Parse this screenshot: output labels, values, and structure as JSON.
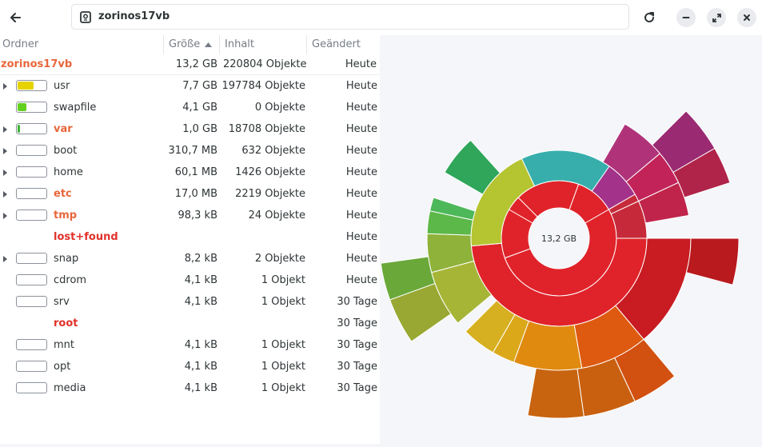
{
  "header": {
    "title": "zorinos17vb",
    "icons": {
      "back": "arrow-left-icon",
      "disk": "disk-icon",
      "reload": "reload-icon",
      "minimize": "minimize-icon",
      "maximize": "maximize-icon",
      "close": "close-icon"
    }
  },
  "columns": {
    "name": "Ordner",
    "size": "Größe",
    "contents": "Inhalt",
    "modified": "Geändert"
  },
  "root": {
    "name": "zorinos17vb",
    "size": "13,2 GB",
    "contents": "220804 Objekte",
    "modified": "Heute"
  },
  "rows": [
    {
      "name": "usr",
      "size": "7,7 GB",
      "contents": "197784 Objekte",
      "modified": "Heute",
      "expandable": true,
      "bar": true,
      "fill_fraction": 0.58,
      "fill_color": "#e5d200",
      "name_color": "#2e3436"
    },
    {
      "name": "swapfile",
      "size": "4,1 GB",
      "contents": "0 Objekte",
      "modified": "Heute",
      "expandable": false,
      "bar": true,
      "fill_fraction": 0.31,
      "fill_color": "#62d01e",
      "name_color": "#2e3436"
    },
    {
      "name": "var",
      "size": "1,0 GB",
      "contents": "18708 Objekte",
      "modified": "Heute",
      "expandable": true,
      "bar": true,
      "fill_fraction": 0.08,
      "fill_color": "#3fb53a",
      "name_color": "#e8663a"
    },
    {
      "name": "boot",
      "size": "310,7 MB",
      "contents": "632 Objekte",
      "modified": "Heute",
      "expandable": true,
      "bar": true,
      "fill_fraction": 0,
      "fill_color": "#cccccc",
      "name_color": "#2e3436"
    },
    {
      "name": "home",
      "size": "60,1 MB",
      "contents": "1426 Objekte",
      "modified": "Heute",
      "expandable": true,
      "bar": true,
      "fill_fraction": 0,
      "fill_color": "#cccccc",
      "name_color": "#2e3436"
    },
    {
      "name": "etc",
      "size": "17,0 MB",
      "contents": "2219 Objekte",
      "modified": "Heute",
      "expandable": true,
      "bar": true,
      "fill_fraction": 0,
      "fill_color": "#cccccc",
      "name_color": "#e8663a"
    },
    {
      "name": "tmp",
      "size": "98,3 kB",
      "contents": "24 Objekte",
      "modified": "Heute",
      "expandable": true,
      "bar": true,
      "fill_fraction": 0,
      "fill_color": "#cccccc",
      "name_color": "#e8663a"
    },
    {
      "name": "lost+found",
      "size": "",
      "contents": "",
      "modified": "Heute",
      "expandable": false,
      "bar": false,
      "fill_fraction": 0,
      "fill_color": "#cccccc",
      "name_color": "#e0312a"
    },
    {
      "name": "snap",
      "size": "8,2 kB",
      "contents": "2 Objekte",
      "modified": "Heute",
      "expandable": true,
      "bar": true,
      "fill_fraction": 0,
      "fill_color": "#cccccc",
      "name_color": "#2e3436"
    },
    {
      "name": "cdrom",
      "size": "4,1 kB",
      "contents": "1 Objekt",
      "modified": "Heute",
      "expandable": false,
      "bar": true,
      "fill_fraction": 0,
      "fill_color": "#cccccc",
      "name_color": "#2e3436"
    },
    {
      "name": "srv",
      "size": "4,1 kB",
      "contents": "1 Objekt",
      "modified": "30 Tage",
      "expandable": false,
      "bar": true,
      "fill_fraction": 0,
      "fill_color": "#cccccc",
      "name_color": "#2e3436"
    },
    {
      "name": "root",
      "size": "",
      "contents": "",
      "modified": "30 Tage",
      "expandable": false,
      "bar": false,
      "fill_fraction": 0,
      "fill_color": "#cccccc",
      "name_color": "#e0312a"
    },
    {
      "name": "mnt",
      "size": "4,1 kB",
      "contents": "1 Objekt",
      "modified": "30 Tage",
      "expandable": false,
      "bar": true,
      "fill_fraction": 0,
      "fill_color": "#cccccc",
      "name_color": "#2e3436"
    },
    {
      "name": "opt",
      "size": "4,1 kB",
      "contents": "1 Objekt",
      "modified": "30 Tage",
      "expandable": false,
      "bar": true,
      "fill_fraction": 0,
      "fill_color": "#cccccc",
      "name_color": "#2e3436"
    },
    {
      "name": "media",
      "size": "4,1 kB",
      "contents": "1 Objekt",
      "modified": "30 Tage",
      "expandable": false,
      "bar": true,
      "fill_fraction": 0,
      "fill_color": "#cccccc",
      "name_color": "#2e3436"
    }
  ],
  "colors": {
    "accent_orange": "#e8663a",
    "accent_red": "#e0312a",
    "usr": "#e5d200",
    "swapfile": "#62d01e",
    "var": "#3fb53a"
  },
  "sunburst": {
    "center_label": "13,2 GB",
    "rings": [
      [
        {
          "start": 0,
          "end": 210,
          "color": "#e0252a"
        },
        {
          "start": 210,
          "end": 322,
          "color": "#b5c431"
        },
        {
          "start": 322,
          "end": 388,
          "color": "#37aeac"
        },
        {
          "start": 388,
          "end": 413,
          "color": "#a3338a"
        },
        {
          "start": 413,
          "end": 416,
          "color": "#c1203a"
        },
        {
          "start": 416,
          "end": 420,
          "color": "#c1203a"
        }
      ],
      [
        {
          "start": 0,
          "end": 210,
          "color": "#cc1c22"
        },
        {
          "start": 190,
          "end": 168,
          "color": "#e08a10"
        },
        {
          "start": 210,
          "end": 240,
          "color": "#a6b536"
        },
        {
          "start": 240,
          "end": 280,
          "color": "#b5c431"
        },
        {
          "start": 282,
          "end": 308,
          "color": "#c2c73a"
        },
        {
          "start": 308,
          "end": 320,
          "color": "#2fa65a"
        }
      ]
    ]
  }
}
